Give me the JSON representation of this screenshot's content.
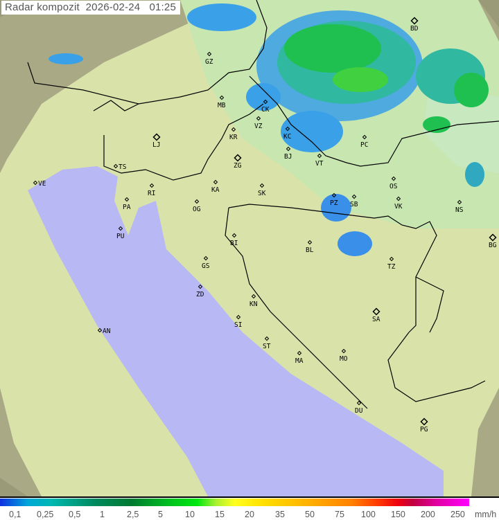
{
  "title": {
    "label": "Radar kompozit",
    "date": "2026-02-24",
    "time": "01:25"
  },
  "legend": {
    "unit": "mm/h",
    "values": [
      "0,1",
      "0,25",
      "0,5",
      "1",
      "2,5",
      "5",
      "10",
      "15",
      "20",
      "35",
      "50",
      "75",
      "100",
      "150",
      "200",
      "250"
    ]
  },
  "colors": {
    "sea": "#b8b8f4",
    "land": "#d8e4a8",
    "outside_range": "#9a9a78",
    "precip_light": "#3aa0e8",
    "precip_mid": "#30c0a0",
    "precip_heavy": "#20c040"
  },
  "cities": [
    {
      "code": "GZ"
    },
    {
      "code": "BD",
      "capital": true
    },
    {
      "code": "MB"
    },
    {
      "code": "CK"
    },
    {
      "code": "VZ"
    },
    {
      "code": "KR"
    },
    {
      "code": "KC"
    },
    {
      "code": "LJ",
      "capital": true
    },
    {
      "code": "PC"
    },
    {
      "code": "VT"
    },
    {
      "code": "BJ"
    },
    {
      "code": "ZG",
      "capital": true
    },
    {
      "code": "TS"
    },
    {
      "code": "VE"
    },
    {
      "code": "KA"
    },
    {
      "code": "SK"
    },
    {
      "code": "OS"
    },
    {
      "code": "RI"
    },
    {
      "code": "PA"
    },
    {
      "code": "OG"
    },
    {
      "code": "PZ"
    },
    {
      "code": "SB"
    },
    {
      "code": "VK"
    },
    {
      "code": "NS"
    },
    {
      "code": "PU"
    },
    {
      "code": "BL"
    },
    {
      "code": "BI"
    },
    {
      "code": "BG",
      "capital": true
    },
    {
      "code": "GS"
    },
    {
      "code": "TZ"
    },
    {
      "code": "ZD"
    },
    {
      "code": "KN"
    },
    {
      "code": "SA",
      "capital": true
    },
    {
      "code": "SI"
    },
    {
      "code": "AN"
    },
    {
      "code": "ST"
    },
    {
      "code": "MA"
    },
    {
      "code": "MO"
    },
    {
      "code": "DU"
    },
    {
      "code": "PG",
      "capital": true
    }
  ]
}
